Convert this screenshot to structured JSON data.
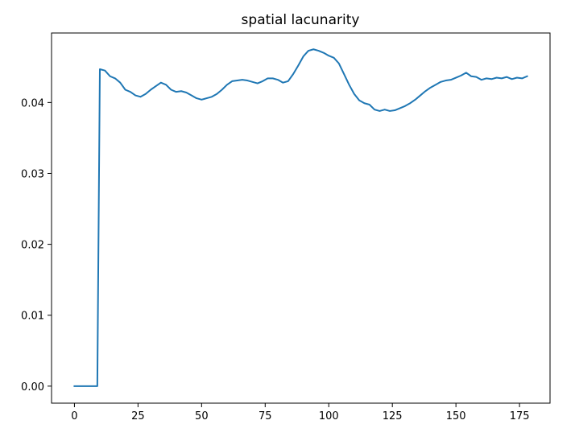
{
  "chart_data": {
    "type": "line",
    "title": "spatial lacunarity",
    "xlabel": "",
    "ylabel": "",
    "xlim": [
      -9,
      187
    ],
    "ylim": [
      -0.0024,
      0.0498
    ],
    "x_ticks": [
      0,
      25,
      50,
      75,
      100,
      125,
      150,
      175
    ],
    "x_tick_labels": [
      "0",
      "25",
      "50",
      "75",
      "100",
      "125",
      "150",
      "175"
    ],
    "y_ticks": [
      0.0,
      0.01,
      0.02,
      0.03,
      0.04
    ],
    "y_tick_labels": [
      "0.00",
      "0.01",
      "0.02",
      "0.03",
      "0.04"
    ],
    "grid": false,
    "legend": "none",
    "line_color": "#1f77b4",
    "series": [
      {
        "x": [
          0,
          9,
          10,
          12,
          14,
          16,
          18,
          20,
          22,
          24,
          26,
          28,
          30,
          32,
          34,
          36,
          38,
          40,
          42,
          44,
          46,
          48,
          50,
          52,
          54,
          56,
          58,
          60,
          62,
          64,
          66,
          68,
          70,
          72,
          74,
          76,
          78,
          80,
          82,
          84,
          86,
          88,
          90,
          92,
          94,
          96,
          98,
          100,
          102,
          104,
          106,
          108,
          110,
          112,
          114,
          116,
          118,
          120,
          122,
          124,
          126,
          128,
          130,
          132,
          134,
          136,
          138,
          140,
          142,
          144,
          146,
          148,
          150,
          152,
          154,
          156,
          158,
          160,
          162,
          164,
          166,
          168,
          170,
          172,
          174,
          176,
          178
        ],
        "y": [
          0.0,
          0.0,
          0.0447,
          0.0445,
          0.0437,
          0.0434,
          0.0428,
          0.0418,
          0.0415,
          0.041,
          0.0408,
          0.0412,
          0.0418,
          0.0423,
          0.0428,
          0.0425,
          0.0418,
          0.0415,
          0.0416,
          0.0414,
          0.041,
          0.0406,
          0.0404,
          0.0406,
          0.0408,
          0.0412,
          0.0418,
          0.0425,
          0.043,
          0.0431,
          0.0432,
          0.0431,
          0.0429,
          0.0427,
          0.043,
          0.0434,
          0.0434,
          0.0432,
          0.0428,
          0.043,
          0.044,
          0.0452,
          0.0465,
          0.0473,
          0.0475,
          0.0473,
          0.047,
          0.0466,
          0.0463,
          0.0455,
          0.044,
          0.0425,
          0.0412,
          0.0403,
          0.0399,
          0.0397,
          0.039,
          0.0388,
          0.039,
          0.0388,
          0.0389,
          0.0392,
          0.0395,
          0.0399,
          0.0404,
          0.041,
          0.0416,
          0.0421,
          0.0425,
          0.0429,
          0.0431,
          0.0432,
          0.0435,
          0.0438,
          0.0442,
          0.0437,
          0.0436,
          0.0432,
          0.0434,
          0.0433,
          0.0435,
          0.0434,
          0.0436,
          0.0433,
          0.0435,
          0.0434,
          0.0437
        ]
      }
    ]
  }
}
